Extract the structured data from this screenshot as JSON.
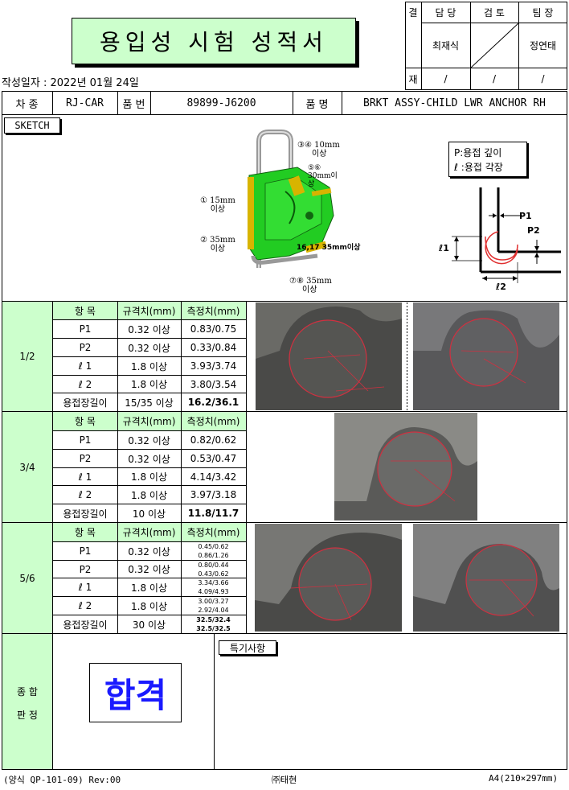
{
  "header": {
    "title": "용입성 시험 성적서",
    "date_label": "작성일자 : 2022년 01월 24일",
    "approval": {
      "col0_top": "결",
      "col0_bottom": "재",
      "roles": [
        "담 당",
        "검 토",
        "팀 장"
      ],
      "names": [
        "최재식",
        "",
        "정연태"
      ],
      "dates": [
        "/",
        "/",
        "/"
      ]
    }
  },
  "info": {
    "car_label": "차 종",
    "car_value": "RJ-CAR",
    "part_no_label": "품 번",
    "part_no_value": "89899-J6200",
    "part_name_label": "품 명",
    "part_name_value": "BRKT ASSY-CHILD LWR ANCHOR RH"
  },
  "sketch": {
    "label": "SKETCH",
    "callouts": {
      "c34": "③④ 10mm",
      "c34b": "이상",
      "c56": "⑤⑥",
      "c56b": "30mm이",
      "c56c": "상",
      "c1": "① 15mm",
      "c1b": "이상",
      "c2": "② 35mm",
      "c2b": "이상",
      "c1617": "16,17 35mm이상",
      "c78": "⑦⑧ 35mm",
      "c78b": "이상"
    },
    "legend": {
      "p": "P:용접 깊이",
      "l": "ℓ :용접 각장"
    },
    "diagram": {
      "p1": "P1",
      "p2": "P2",
      "l1": "ℓ1",
      "l2": "ℓ2"
    }
  },
  "table": {
    "headers": [
      "항   목",
      "규격치(mm)",
      "측정치(mm)"
    ],
    "sections": [
      {
        "label": "1/2",
        "rows": [
          [
            "P1",
            "0.32 이상",
            "0.83/0.75"
          ],
          [
            "P2",
            "0.32 이상",
            "0.33/0.84"
          ],
          [
            "ℓ 1",
            "1.8 이상",
            "3.93/3.74"
          ],
          [
            "ℓ 2",
            "1.8 이상",
            "3.80/3.54"
          ],
          [
            "용접장길이",
            "15/35 이상",
            "16.2/36.1"
          ]
        ]
      },
      {
        "label": "3/4",
        "rows": [
          [
            "P1",
            "0.32 이상",
            "0.82/0.62"
          ],
          [
            "P2",
            "0.32 이상",
            "0.53/0.47"
          ],
          [
            "ℓ 1",
            "1.8 이상",
            "4.14/3.42"
          ],
          [
            "ℓ 2",
            "1.8 이상",
            "3.97/3.18"
          ],
          [
            "용접장길이",
            "10 이상",
            "11.8/11.7"
          ]
        ]
      },
      {
        "label": "5/6",
        "rows": [
          [
            "P1",
            "0.32 이상",
            "0.45/0.62",
            "0.86/1.26"
          ],
          [
            "P2",
            "0.32 이상",
            "0.80/0.44",
            "0.43/0.62"
          ],
          [
            "ℓ 1",
            "1.8 이상",
            "3.34/3.66",
            "4.09/4.93"
          ],
          [
            "ℓ 2",
            "1.8 이상",
            "3.00/3.27",
            "2.92/4.04"
          ],
          [
            "용접장길이",
            "30 이상",
            "32.5/32.4",
            "32.5/32.5"
          ]
        ]
      }
    ]
  },
  "judgement": {
    "label_line1": "종 합",
    "label_line2": "판 정",
    "result": "합격",
    "remarks_label": "특기사항"
  },
  "footer": {
    "form": "(양식 QP-101-09) Rev:00",
    "company": "㈜태현",
    "size": "A4(210×297mm)"
  },
  "colors": {
    "green": "#ccffcc",
    "result_blue": "#1a1aff",
    "weld_green": "#22cc22"
  }
}
